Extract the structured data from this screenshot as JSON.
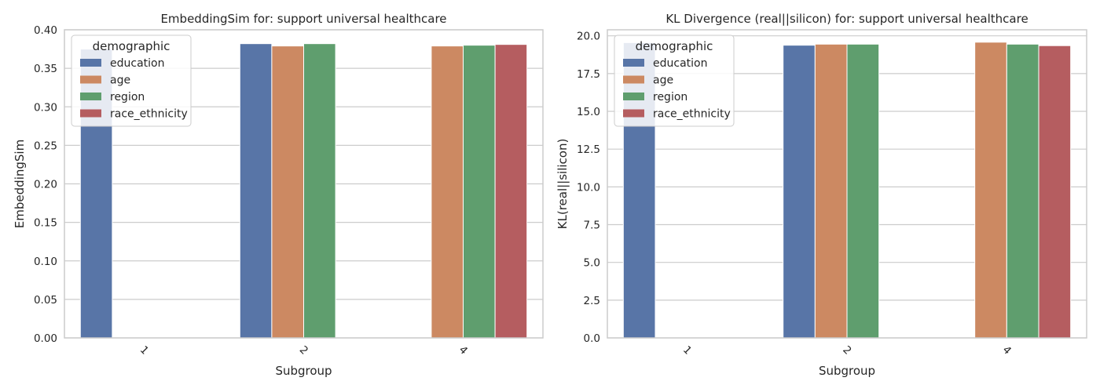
{
  "chart_data": [
    {
      "type": "bar",
      "title": "EmbeddingSim for: support universal healthcare",
      "xlabel": "Subgroup",
      "ylabel": "EmbeddingSim",
      "categories": [
        "1",
        "2",
        "4"
      ],
      "ylim": [
        0,
        0.4
      ],
      "yticks": [
        "0.00",
        "0.05",
        "0.10",
        "0.15",
        "0.20",
        "0.25",
        "0.30",
        "0.35",
        "0.40"
      ],
      "grid": true,
      "legend": {
        "title": "demographic",
        "placement": "upper-left"
      },
      "series": [
        {
          "name": "education",
          "color": "#5875a7",
          "values": [
            0.375,
            0.382,
            null
          ]
        },
        {
          "name": "age",
          "color": "#cc8962",
          "values": [
            null,
            0.379,
            0.379
          ]
        },
        {
          "name": "region",
          "color": "#5f9e6e",
          "values": [
            null,
            0.382,
            0.38
          ]
        },
        {
          "name": "race_ethnicity",
          "color": "#b55d60",
          "values": [
            null,
            null,
            0.381
          ]
        }
      ]
    },
    {
      "type": "bar",
      "title": "KL Divergence (real||silicon) for: support universal healthcare",
      "xlabel": "Subgroup",
      "ylabel": "KL(real||silicon)",
      "categories": [
        "1",
        "2",
        "4"
      ],
      "ylim": [
        0,
        20.4
      ],
      "yticks": [
        "0.0",
        "2.5",
        "5.0",
        "7.5",
        "10.0",
        "12.5",
        "15.0",
        "17.5",
        "20.0"
      ],
      "grid": true,
      "legend": {
        "title": "demographic",
        "placement": "upper-left"
      },
      "series": [
        {
          "name": "education",
          "color": "#5875a7",
          "values": [
            19.55,
            19.38,
            null
          ]
        },
        {
          "name": "age",
          "color": "#cc8962",
          "values": [
            null,
            19.45,
            19.58
          ]
        },
        {
          "name": "region",
          "color": "#5f9e6e",
          "values": [
            null,
            19.45,
            19.45
          ]
        },
        {
          "name": "race_ethnicity",
          "color": "#b55d60",
          "values": [
            null,
            null,
            19.35
          ]
        }
      ]
    }
  ]
}
